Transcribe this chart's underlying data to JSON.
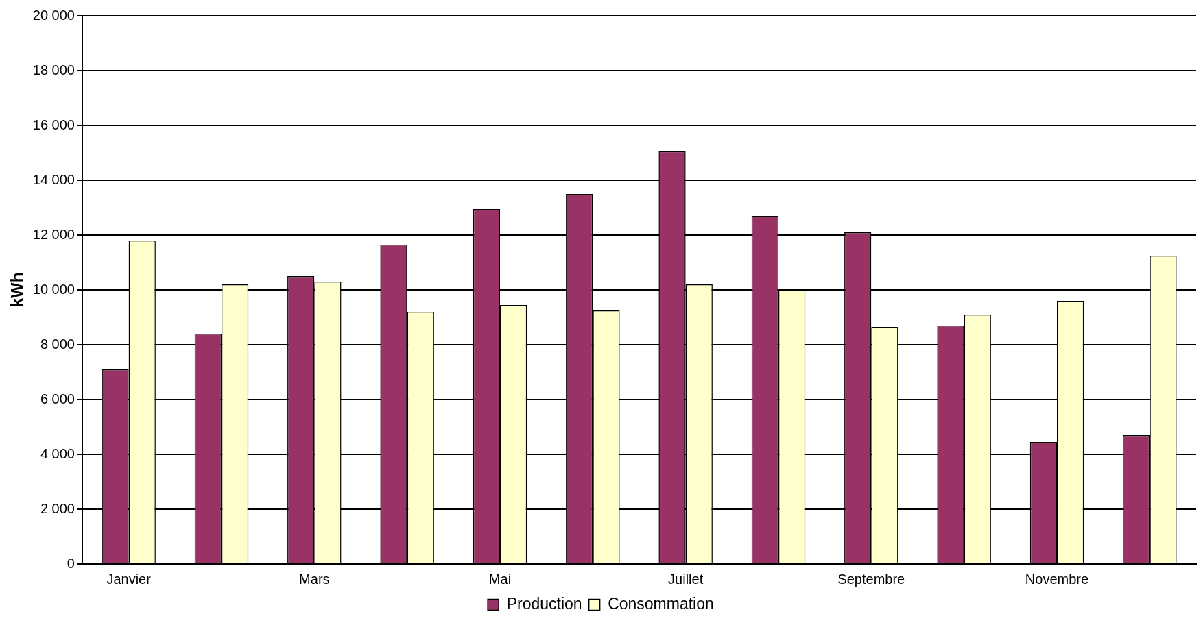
{
  "chart_data": {
    "type": "bar",
    "ylabel": "kWh",
    "categories": [
      "Janvier",
      null,
      "Mars",
      null,
      "Mai",
      null,
      "Juillet",
      null,
      "Septembre",
      null,
      "Novembre",
      null
    ],
    "series": [
      {
        "name": "Production",
        "color": "#993366",
        "values": [
          7100,
          8400,
          10500,
          11650,
          12950,
          13500,
          15050,
          12700,
          12100,
          8700,
          4450,
          4700
        ]
      },
      {
        "name": "Consommation",
        "color": "#ffffcc",
        "values": [
          11800,
          10200,
          10300,
          9200,
          9450,
          9250,
          10200,
          10000,
          8650,
          9100,
          9600,
          11250
        ]
      }
    ],
    "ylim": [
      0,
      20000
    ],
    "yticks": [
      {
        "value": 0,
        "label": "0"
      },
      {
        "value": 2000,
        "label": "2 000"
      },
      {
        "value": 4000,
        "label": "4 000"
      },
      {
        "value": 6000,
        "label": "6 000"
      },
      {
        "value": 8000,
        "label": "8 000"
      },
      {
        "value": 10000,
        "label": "10 000"
      },
      {
        "value": 12000,
        "label": "12 000"
      },
      {
        "value": 14000,
        "label": "14 000"
      },
      {
        "value": 16000,
        "label": "16 000"
      },
      {
        "value": 18000,
        "label": "18 000"
      },
      {
        "value": 20000,
        "label": "20 000"
      }
    ],
    "grid": "y",
    "legend": "bottom"
  }
}
